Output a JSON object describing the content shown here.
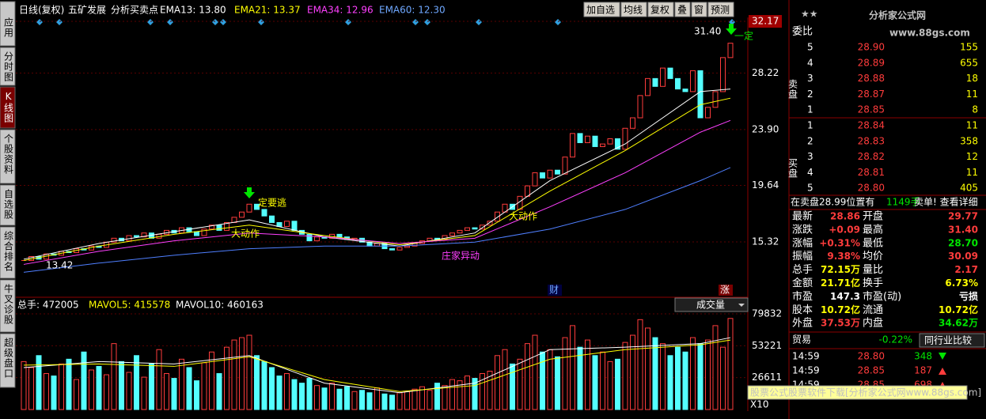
{
  "sidebar": {
    "tabs": [
      "应用",
      "分时图",
      "K线图",
      "个股资料",
      "自选股",
      "综合排名",
      "牛叉诊股",
      "超级盘口"
    ]
  },
  "header": {
    "period": "日线(复权)",
    "stock": "五矿发展",
    "formula": "分析买卖点",
    "indicators": [
      "EMA13: 13.80",
      "EMA21: 13.37",
      "EMA34: 12.96",
      "EMA60: 12.30"
    ]
  },
  "toolbar": [
    "加自选",
    "均线",
    "复权",
    "叠",
    "窗",
    "预测"
  ],
  "chart_data": [
    {
      "type": "candlestick",
      "closes": [
        13.9,
        14.2,
        14.0,
        14.4,
        14.3,
        14.6,
        14.5,
        14.8,
        14.7,
        15.0,
        14.9,
        15.3,
        15.6,
        15.4,
        15.8,
        15.7,
        16.0,
        15.6,
        15.9,
        16.2,
        16.0,
        16.4,
        16.1,
        15.8,
        16.3,
        16.6,
        16.2,
        16.8,
        17.2,
        17.6,
        18.2,
        17.8,
        17.3,
        16.8,
        16.5,
        16.9,
        16.2,
        15.9,
        15.4,
        15.7,
        15.6,
        15.9,
        15.7,
        15.5,
        15.6,
        15.3,
        15.0,
        15.2,
        14.8,
        14.7,
        14.9,
        15.0,
        15.2,
        15.4,
        15.6,
        15.5,
        15.8,
        16.0,
        16.2,
        16.4,
        16.3,
        16.6,
        16.9,
        17.6,
        18.2,
        17.8,
        18.8,
        19.6,
        20.6,
        20.2,
        20.8,
        20.5,
        21.8,
        23.6,
        22.9,
        23.4,
        22.6,
        22.8,
        23.2,
        22.4,
        24.0,
        24.8,
        26.5,
        27.8,
        27.2,
        28.6,
        27.8,
        27.0,
        26.8,
        28.4,
        24.8,
        25.6,
        26.8,
        29.4,
        30.5
      ],
      "up_color": "#ff3c3c",
      "down_color": "#54ffff",
      "ylim": [
        11.15,
        32.17
      ],
      "yticks": [
        15.32,
        19.64,
        {
          "value": 23.9,
          "label": "23.90"
        },
        28.22,
        32.17
      ],
      "grid": true,
      "ma_x": [
        0,
        10,
        20,
        30,
        40,
        50,
        60,
        70,
        80,
        90,
        94
      ],
      "series": [
        {
          "color": "#ffffff",
          "values": [
            14.0,
            15.2,
            16.1,
            17.0,
            15.7,
            15.0,
            16.0,
            20.0,
            22.8,
            26.8,
            27.0
          ]
        },
        {
          "color": "#ffff00",
          "values": [
            13.9,
            15.0,
            15.9,
            16.6,
            15.8,
            15.1,
            15.8,
            19.2,
            22.3,
            25.8,
            26.3
          ]
        },
        {
          "color": "#ff40ff",
          "values": [
            13.6,
            14.6,
            15.4,
            16.0,
            15.7,
            15.2,
            15.6,
            18.0,
            20.6,
            23.7,
            24.6
          ]
        },
        {
          "color": "#4f7fff",
          "values": [
            13.0,
            13.7,
            14.3,
            14.8,
            15.0,
            15.0,
            15.3,
            16.3,
            17.8,
            20.0,
            21.0
          ]
        }
      ],
      "annotations": [
        "定要逃",
        "大动作",
        "大动作",
        "庄家异动",
        "财",
        "涨",
        "31.40",
        "一定",
        "13.42"
      ]
    },
    {
      "type": "bar",
      "header": [
        "总手: 472005",
        "MAVOL5: 415578",
        "MAVOL10: 460163"
      ],
      "dropdown": "成交量",
      "values": [
        40000,
        35000,
        45000,
        30000,
        28000,
        38000,
        42000,
        25000,
        48000,
        33000,
        36000,
        29000,
        55000,
        40000,
        31000,
        45000,
        27000,
        38000,
        50000,
        30000,
        26000,
        42000,
        35000,
        24000,
        39000,
        48000,
        30000,
        52000,
        58000,
        60000,
        62000,
        45000,
        40000,
        35000,
        28000,
        30000,
        25000,
        22000,
        26000,
        20000,
        18000,
        22000,
        17000,
        19000,
        15000,
        16000,
        14000,
        18000,
        13000,
        12000,
        14000,
        15000,
        17000,
        19000,
        16000,
        22000,
        20000,
        25000,
        24000,
        28000,
        26000,
        30000,
        32000,
        45000,
        50000,
        38000,
        42000,
        55000,
        62000,
        48000,
        50000,
        44000,
        60000,
        70000,
        52000,
        58000,
        45000,
        48000,
        40000,
        42000,
        56000,
        62000,
        75000,
        68000,
        60000,
        55000,
        45000,
        52000,
        48000,
        60000,
        55000,
        58000,
        70000,
        52000,
        76000
      ],
      "ylim": [
        0,
        79832
      ],
      "yticks": [
        79832,
        53221,
        26611
      ],
      "unit": "X10",
      "series": [
        {
          "color": "#ffffff",
          "values": [
            35000,
            40000,
            38000,
            45000,
            22000,
            14000,
            22000,
            50000,
            52000,
            55000,
            60000
          ]
        },
        {
          "color": "#ffff00",
          "values": [
            37000,
            38000,
            36000,
            44000,
            25000,
            15000,
            20000,
            42000,
            50000,
            54000,
            58000
          ]
        }
      ]
    }
  ],
  "panel": {
    "logo": "分析家公式网",
    "site": "www.88gs.com",
    "ratio_label": "委比",
    "sell_label": "卖盘",
    "buy_label": "买盘",
    "sell": [
      [
        "5",
        "28.90",
        "155"
      ],
      [
        "4",
        "28.89",
        "655"
      ],
      [
        "3",
        "28.88",
        "18"
      ],
      [
        "2",
        "28.87",
        "11"
      ],
      [
        "1",
        "28.85",
        "8"
      ]
    ],
    "buy": [
      [
        "1",
        "28.84",
        "11"
      ],
      [
        "2",
        "28.83",
        "358"
      ],
      [
        "3",
        "28.82",
        "12"
      ],
      [
        "4",
        "28.81",
        "11"
      ],
      [
        "5",
        "28.80",
        "405"
      ]
    ],
    "notice": [
      "在卖盘28.99位置有",
      "1149手",
      "卖单! 查看详细"
    ],
    "quotes": [
      [
        "最新",
        "28.86",
        "开盘",
        "29.77"
      ],
      [
        "涨跌",
        "+0.09",
        "最高",
        "31.40"
      ],
      [
        "涨幅",
        "+0.31%",
        "最低",
        "28.70"
      ],
      [
        "振幅",
        "9.38%",
        "均价",
        "30.09"
      ],
      [
        "总手",
        "72.15万",
        "量比",
        "2.17"
      ],
      [
        "金额",
        "21.71亿",
        "换手",
        "6.73%"
      ],
      [
        "市盈",
        "147.3",
        "市盈(动)",
        "亏损"
      ],
      [
        "股本",
        "10.72亿",
        "流通",
        "10.72亿"
      ],
      [
        "外盘",
        "37.53万",
        "内盘",
        "34.62万"
      ]
    ],
    "sector": [
      "贸易",
      "-0.22%",
      "同行业比较"
    ],
    "trades": [
      [
        "14:59",
        "28.80",
        "348"
      ],
      [
        "14:59",
        "28.85",
        "187"
      ],
      [
        "14:59",
        "28.85",
        "698"
      ]
    ],
    "banner": "股票公式股票软件下载[分析家公式网www.88gs.com]"
  }
}
